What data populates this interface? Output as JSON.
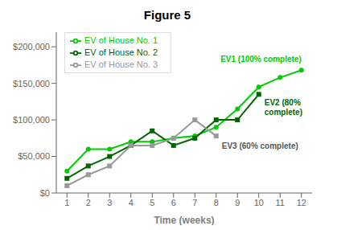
{
  "chart_data": {
    "type": "line",
    "title": "Figure 5",
    "xlabel": "Time (weeks)",
    "x": [
      1,
      2,
      3,
      4,
      5,
      6,
      7,
      8,
      9,
      10,
      11,
      12
    ],
    "series": [
      {
        "name": "EV of House No. 1",
        "color": "#00cc00",
        "marker": "circle",
        "values": [
          30000,
          60000,
          60000,
          70000,
          70000,
          75000,
          78000,
          90000,
          115000,
          145000,
          158000,
          168000
        ]
      },
      {
        "name": "EV of House No. 2",
        "color": "#006600",
        "marker": "square",
        "values": [
          20000,
          37000,
          50000,
          65000,
          85000,
          65000,
          75000,
          100000,
          100000,
          135000,
          null,
          null
        ]
      },
      {
        "name": "EV of House No. 3",
        "color": "#999999",
        "marker": "square",
        "values": [
          10000,
          25000,
          37000,
          65000,
          65000,
          75000,
          100000,
          78000,
          null,
          null,
          null,
          null
        ]
      }
    ],
    "annotations": [
      {
        "text": "EV1 (100% complete)",
        "color": "#00cc00"
      },
      {
        "text": "EV2 (80%\ncomplete)",
        "color": "#006600"
      },
      {
        "text": "EV3 (60% complete)",
        "color": "#555555"
      }
    ],
    "xlim": [
      0.5,
      12.5
    ],
    "xticks": [
      1,
      2,
      3,
      4,
      5,
      6,
      7,
      8,
      9,
      10,
      11,
      12
    ],
    "ylim": [
      0,
      220000
    ],
    "yticks": [
      {
        "value": 0,
        "label": "$0"
      },
      {
        "value": 50000,
        "label": "$50,000"
      },
      {
        "value": 100000,
        "label": "$100,000"
      },
      {
        "value": 150000,
        "label": "$150,000"
      },
      {
        "value": 200000,
        "label": "$200,000"
      }
    ],
    "grid": false,
    "legend": "upper left"
  }
}
